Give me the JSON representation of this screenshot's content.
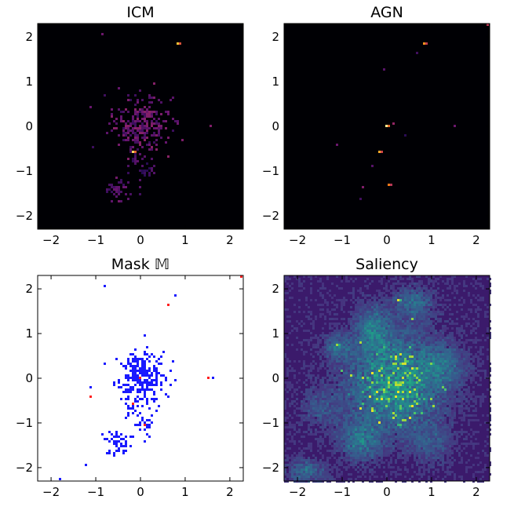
{
  "chart_data": [
    {
      "type": "heatmap",
      "title": "ICM",
      "colormap": "magma",
      "background": "#000004",
      "xlim": [
        -2.3,
        2.3
      ],
      "ylim": [
        -2.3,
        2.3
      ],
      "xticks": [
        -2,
        -1,
        0,
        1,
        2
      ],
      "yticks": [
        -2,
        -1,
        0,
        1,
        2
      ],
      "xtick_labels": [
        "−2",
        "−1",
        "0",
        "1",
        "2"
      ],
      "ytick_labels": [
        "−2",
        "−1",
        "0",
        "1",
        "2"
      ],
      "grid": false,
      "hotspots": [
        {
          "x": -0.15,
          "y": -0.55,
          "v": 0.9
        },
        {
          "x": 0.85,
          "y": 1.85,
          "v": 0.85
        },
        {
          "x": 1.55,
          "y": 0.0,
          "v": 0.35
        },
        {
          "x": -0.85,
          "y": 2.05,
          "v": 0.3
        }
      ],
      "clusters": [
        {
          "x": 0.0,
          "y": 0.05,
          "spread": 0.32,
          "count": 260,
          "v": 0.35
        },
        {
          "x": -0.5,
          "y": -1.45,
          "spread": 0.15,
          "count": 45,
          "v": 0.3
        },
        {
          "x": 0.1,
          "y": -1.0,
          "spread": 0.12,
          "count": 25,
          "v": 0.25
        },
        {
          "x": -0.2,
          "y": -0.75,
          "spread": 0.1,
          "count": 12,
          "v": 0.25
        }
      ]
    },
    {
      "type": "heatmap",
      "title": "AGN",
      "colormap": "magma",
      "background": "#000004",
      "xlim": [
        -2.3,
        2.3
      ],
      "ylim": [
        -2.3,
        2.3
      ],
      "xticks": [
        -2,
        -1,
        0,
        1,
        2
      ],
      "yticks": [
        -2,
        -1,
        0,
        1,
        2
      ],
      "xtick_labels": [
        "−2",
        "−1",
        "0",
        "1",
        "2"
      ],
      "ytick_labels": [
        "−2",
        "−1",
        "0",
        "1",
        "2"
      ],
      "grid": false,
      "hotspots": [
        {
          "x": 0.0,
          "y": 0.0,
          "v": 0.95
        },
        {
          "x": -0.15,
          "y": -0.55,
          "v": 0.8
        },
        {
          "x": 0.85,
          "y": 1.85,
          "v": 0.75
        },
        {
          "x": 0.05,
          "y": -1.3,
          "v": 0.7
        },
        {
          "x": 2.28,
          "y": 2.28,
          "v": 0.5
        },
        {
          "x": 0.15,
          "y": 0.08,
          "v": 0.4
        },
        {
          "x": 1.5,
          "y": 0.0,
          "v": 0.3
        },
        {
          "x": -1.1,
          "y": -0.4,
          "v": 0.3
        },
        {
          "x": -0.55,
          "y": -1.35,
          "v": 0.35
        },
        {
          "x": -0.3,
          "y": -0.9,
          "v": 0.25
        },
        {
          "x": -0.05,
          "y": 1.25,
          "v": 0.25
        },
        {
          "x": 0.7,
          "y": 1.65,
          "v": 0.2
        },
        {
          "x": -0.6,
          "y": -1.6,
          "v": 0.2
        },
        {
          "x": 0.4,
          "y": -0.2,
          "v": 0.15
        }
      ],
      "clusters": []
    },
    {
      "type": "heatmap",
      "title": "Mask 𝕄",
      "colormap": "mask",
      "background": "#ffffff",
      "xlim": [
        -2.3,
        2.3
      ],
      "ylim": [
        -2.3,
        2.3
      ],
      "xticks": [
        -2,
        -1,
        0,
        1,
        2
      ],
      "yticks": [
        -2,
        -1,
        0,
        1,
        2
      ],
      "xtick_labels": [
        "−2",
        "−1",
        "0",
        "1",
        "2"
      ],
      "ytick_labels": [
        "−2",
        "−1",
        "0",
        "1",
        "2"
      ],
      "grid": false,
      "mask_colors": {
        "icm": "#1a1aff",
        "agn": "#ff2020"
      },
      "hotspots": [
        {
          "x": 0.0,
          "y": 0.0,
          "v": 1.0,
          "cls": "agn"
        },
        {
          "x": -0.15,
          "y": -0.55,
          "v": 1.0,
          "cls": "agn"
        },
        {
          "x": -1.1,
          "y": -0.4,
          "v": 1.0,
          "cls": "agn"
        },
        {
          "x": 0.6,
          "y": 1.65,
          "v": 1.0,
          "cls": "agn"
        },
        {
          "x": 2.28,
          "y": 2.28,
          "v": 1.0,
          "cls": "agn"
        },
        {
          "x": 1.5,
          "y": 0.0,
          "v": 1.0,
          "cls": "agn"
        },
        {
          "x": 0.1,
          "y": -1.05,
          "v": 1.0,
          "cls": "agn"
        },
        {
          "x": 0.8,
          "y": 1.85,
          "v": 1.0,
          "cls": "icm"
        },
        {
          "x": 1.6,
          "y": 0.0,
          "v": 1.0,
          "cls": "icm"
        },
        {
          "x": -0.8,
          "y": 2.05,
          "v": 1.0,
          "cls": "icm"
        },
        {
          "x": -1.2,
          "y": -1.95,
          "v": 1.0,
          "cls": "icm"
        },
        {
          "x": -1.8,
          "y": -2.25,
          "v": 1.0,
          "cls": "icm"
        }
      ],
      "clusters": [
        {
          "x": 0.0,
          "y": 0.05,
          "spread": 0.28,
          "count": 280,
          "v": 1.0,
          "cls": "icm"
        },
        {
          "x": -0.5,
          "y": -1.45,
          "spread": 0.15,
          "count": 50,
          "v": 1.0,
          "cls": "icm"
        },
        {
          "x": 0.1,
          "y": -1.05,
          "spread": 0.12,
          "count": 28,
          "v": 1.0,
          "cls": "icm"
        },
        {
          "x": -0.2,
          "y": -0.65,
          "spread": 0.1,
          "count": 20,
          "v": 1.0,
          "cls": "icm"
        }
      ]
    },
    {
      "type": "heatmap",
      "title": "Saliency",
      "colormap": "viridis",
      "background": "#3b1a6b",
      "xlim": [
        -2.3,
        2.3
      ],
      "ylim": [
        -2.3,
        2.3
      ],
      "xticks": [
        -2,
        -1,
        0,
        1,
        2
      ],
      "yticks": [
        -2,
        -1,
        0,
        1,
        2
      ],
      "xtick_labels": [
        "−2",
        "−1",
        "0",
        "1",
        "2"
      ],
      "ytick_labels": [
        "−2",
        "−1",
        "0",
        "1",
        "2"
      ],
      "grid": false,
      "diffuse": [
        {
          "x": 0.2,
          "y": -0.1,
          "sx": 0.75,
          "sy": 0.75,
          "v": 0.45
        },
        {
          "x": -0.3,
          "y": 1.1,
          "sx": 0.25,
          "sy": 0.35,
          "v": 0.3
        },
        {
          "x": 0.6,
          "y": 1.7,
          "sx": 0.3,
          "sy": 0.25,
          "v": 0.25
        },
        {
          "x": -0.6,
          "y": -1.4,
          "sx": 0.3,
          "sy": 0.3,
          "v": 0.3
        },
        {
          "x": -1.1,
          "y": 0.7,
          "sx": 0.2,
          "sy": 0.2,
          "v": 0.25
        },
        {
          "x": 1.3,
          "y": 0.3,
          "sx": 0.3,
          "sy": 0.3,
          "v": 0.2
        },
        {
          "x": -1.8,
          "y": -2.1,
          "sx": 0.3,
          "sy": 0.2,
          "v": 0.25
        },
        {
          "x": 1.0,
          "y": -1.5,
          "sx": 0.3,
          "sy": 0.3,
          "v": 0.15
        },
        {
          "x": -1.5,
          "y": -0.7,
          "sx": 0.3,
          "sy": 0.3,
          "v": 0.15
        }
      ],
      "hotspots": [
        {
          "x": 0.25,
          "y": 1.75,
          "v": 0.95
        },
        {
          "x": -1.1,
          "y": 0.75,
          "v": 0.85
        },
        {
          "x": 1.0,
          "y": 0.3,
          "v": 0.8
        },
        {
          "x": 0.3,
          "y": -0.7,
          "v": 0.75
        },
        {
          "x": -0.4,
          "y": 0.0,
          "v": 0.7
        }
      ],
      "clusters": [
        {
          "x": 0.2,
          "y": -0.2,
          "spread": 0.4,
          "count": 160,
          "v": 0.9
        }
      ]
    }
  ]
}
